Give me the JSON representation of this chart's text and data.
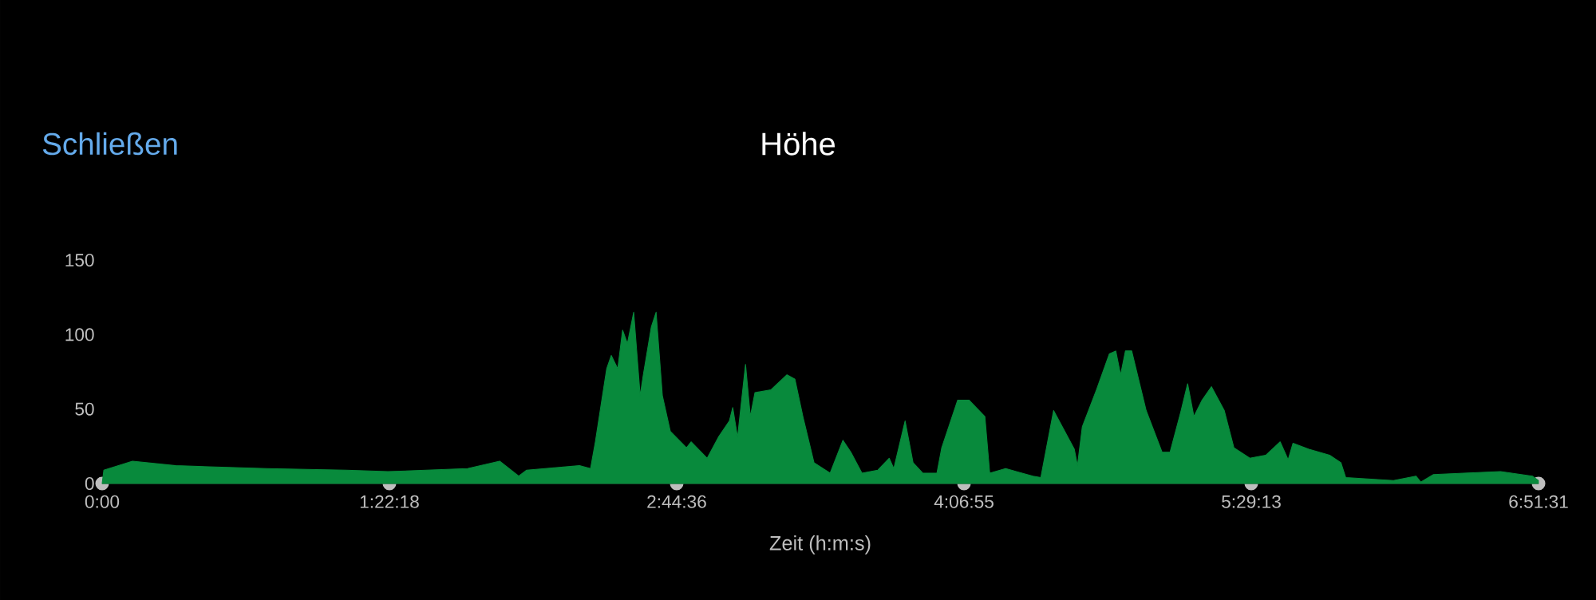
{
  "chart_data": {
    "type": "area",
    "title": "Höhe",
    "xlabel": "Zeit (h:m:s)",
    "annotations": [
      "Schließen"
    ],
    "color": "#088a3c",
    "x": [
      0,
      0.008,
      0.145,
      0.351,
      0.785,
      1.166,
      1.364,
      1.745,
      1.898,
      1.989,
      2.027,
      2.279,
      2.332,
      2.355,
      2.409,
      2.431,
      2.462,
      2.485,
      2.508,
      2.538,
      2.569,
      2.584,
      2.622,
      2.645,
      2.675,
      2.713,
      2.79,
      2.812,
      2.889,
      2.942,
      2.995,
      3.011,
      3.034,
      3.072,
      3.095,
      3.117,
      3.194,
      3.27,
      3.308,
      3.346,
      3.399,
      3.476,
      3.537,
      3.575,
      3.628,
      3.704,
      3.758,
      3.78,
      3.834,
      3.872,
      3.918,
      3.986,
      4.009,
      4.085,
      4.139,
      4.215,
      4.238,
      4.314,
      4.444,
      4.482,
      4.543,
      4.642,
      4.657,
      4.68,
      4.748,
      4.809,
      4.84,
      4.863,
      4.886,
      4.916,
      4.985,
      5.061,
      5.099,
      5.152,
      5.183,
      5.213,
      5.252,
      5.297,
      5.358,
      5.404,
      5.48,
      5.556,
      5.625,
      5.663,
      5.686,
      5.762,
      5.861,
      5.915,
      5.938,
      6.166,
      6.273,
      6.296,
      6.357,
      6.502,
      6.677,
      6.829,
      6.858
    ],
    "values": [
      0,
      9,
      15,
      12,
      10,
      9,
      8,
      10,
      15,
      5,
      9,
      12,
      10,
      28,
      77,
      86,
      77,
      103,
      94,
      115,
      59,
      73,
      105,
      115,
      59,
      35,
      24,
      28,
      17,
      31,
      42,
      51,
      31,
      80,
      45,
      61,
      63,
      73,
      70,
      45,
      14,
      7,
      29,
      21,
      7,
      9,
      17,
      10,
      42,
      14,
      7,
      7,
      24,
      56,
      56,
      45,
      7,
      10,
      5,
      4,
      49,
      23,
      12,
      38,
      63,
      87,
      89,
      73,
      89,
      89,
      49,
      21,
      21,
      49,
      67,
      45,
      56,
      65,
      49,
      24,
      17,
      19,
      28,
      16,
      27,
      23,
      19,
      14,
      4,
      2,
      5,
      1,
      6,
      7,
      8,
      5,
      2
    ],
    "xlim": [
      0,
      6.8586
    ],
    "xticks": [
      {
        "value": 0,
        "label": "0:00"
      },
      {
        "value": 1.3717,
        "label": "1:22:18"
      },
      {
        "value": 2.7433,
        "label": "2:44:36"
      },
      {
        "value": 4.1153,
        "label": "4:06:55"
      },
      {
        "value": 5.4869,
        "label": "5:29:13"
      },
      {
        "value": 6.8586,
        "label": "6:51:31"
      }
    ],
    "ylim": [
      0,
      150
    ],
    "yticks": [
      0,
      50,
      100,
      150
    ]
  }
}
